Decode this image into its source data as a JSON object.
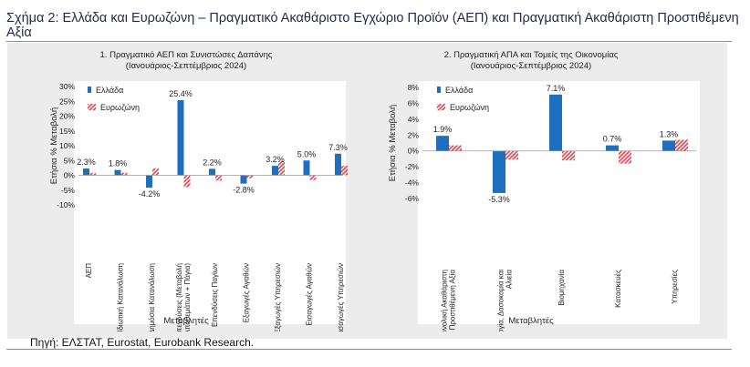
{
  "figure_title": "Σχήμα 2: Ελλάδα και Ευρωζώνη – Πραγματικό Ακαθάριστο Εγχώριο Προϊόν (ΑΕΠ) και Πραγματική Ακαθάριστη Προστιθέμενη Αξία",
  "source_note": "Πηγή: ΕΛΣΤΑΤ, Eurostat, Eurobank Research.",
  "colors": {
    "greece": "#1f6fc0",
    "eurozone": "#e8404a",
    "panel": "#ececec",
    "plot": "#ffffff"
  },
  "chart_data": [
    {
      "type": "bar",
      "title": "1. Πραγματικό ΑΕΠ και Συνιστώσες Δαπάνης",
      "subtitle": "(Ιανουάριος-Σεπτέμβριος 2024)",
      "xlabel": "Μεταβλητές",
      "ylabel": "Ετήσια % Μεταβολή",
      "ylim": [
        -10,
        30
      ],
      "yticks": [
        -10,
        -5,
        0,
        5,
        10,
        15,
        20,
        25,
        30
      ],
      "ytick_labels": [
        "-10%",
        "-5%",
        "0%",
        "5%",
        "10%",
        "15%",
        "20%",
        "25%",
        "30%"
      ],
      "categories": [
        "ΑΕΠ",
        "Ιδιωτική Κατανάλωση",
        "Δημόσια Κατανάλωση",
        "Επενδύσεις (Μεταβολή Αποθεμάτων + Πάγια)",
        "Επενδύσεις Παγίων",
        "Εξαγωγές Αγαθών",
        "Εξαγωγές Υπηρεσιών",
        "Εισαγωγές Αγαθών",
        "Εισαγωγές Υπηρεσιών"
      ],
      "series": [
        {
          "name": "Ελλάδα",
          "values": [
            2.3,
            1.8,
            -4.2,
            25.4,
            2.2,
            -2.8,
            3.2,
            5.0,
            7.3
          ]
        },
        {
          "name": "Ευρωζώνη",
          "values": [
            0.8,
            0.9,
            2.4,
            -4.0,
            -1.8,
            -1.0,
            4.8,
            -1.6,
            3.2
          ]
        }
      ],
      "data_labels": [
        "2.3%",
        "1.8%",
        "-4.2%",
        "25.4%",
        "2.2%",
        "-2.8%",
        "3.2%",
        "5.0%",
        "7.3%"
      ],
      "legend": "top-left"
    },
    {
      "type": "bar",
      "title": "2. Πραγματική ΑΠΑ και Τομείς της Οικονομίας",
      "subtitle": "(Ιανουάριος-Σεπτέμβριος 2024)",
      "xlabel": "Μεταβλητές",
      "ylabel": "Ετήσια % Μεταβολή",
      "ylim": [
        -6,
        8
      ],
      "yticks": [
        -6,
        -4,
        -2,
        0,
        2,
        4,
        6,
        8
      ],
      "ytick_labels": [
        "-6%",
        "-4%",
        "-2%",
        "0%",
        "2%",
        "4%",
        "6%",
        "8%"
      ],
      "categories": [
        "Συνολική Ακαθάριστη Προστιθέμενη Αξία",
        "Γεωργία, Δασοκομία και Αλιεία",
        "Βιομηχανία",
        "Κατασκευές",
        "Υπηρεσίες"
      ],
      "series": [
        {
          "name": "Ελλάδα",
          "values": [
            1.9,
            -5.3,
            7.1,
            0.7,
            1.3
          ]
        },
        {
          "name": "Ευρωζώνη",
          "values": [
            0.7,
            -1.1,
            -1.2,
            -1.6,
            1.4
          ]
        }
      ],
      "data_labels": [
        "1.9%",
        "-5.3%",
        "7.1%",
        "0.7%",
        "1.3%"
      ],
      "legend": "top-left"
    }
  ]
}
